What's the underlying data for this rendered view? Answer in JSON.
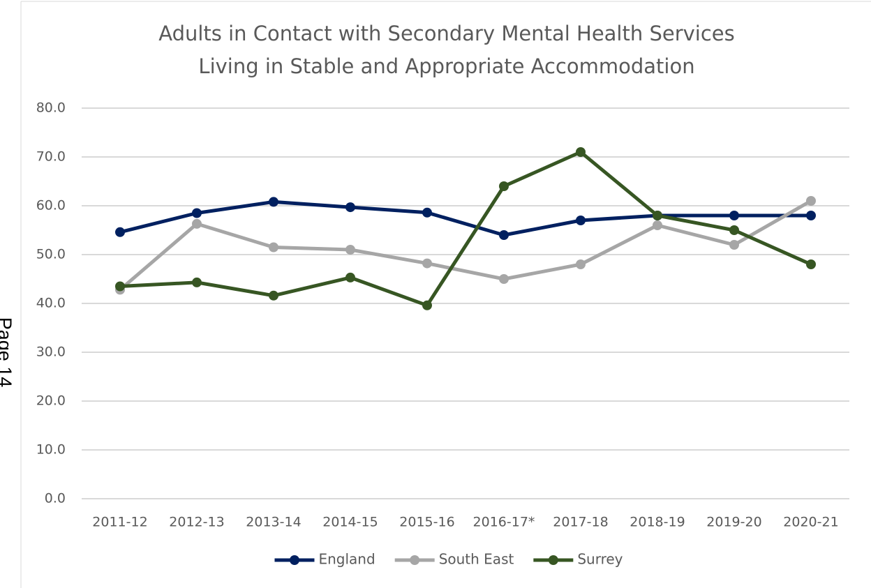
{
  "page_label": "Page 14",
  "chart_data": {
    "type": "line",
    "title": [
      "Adults in Contact with Secondary Mental Health Services",
      "Living in Stable and Appropriate Accommodation"
    ],
    "categories": [
      "2011-12",
      "2012-13",
      "2013-14",
      "2014-15",
      "2015-16",
      "2016-17*",
      "2017-18",
      "2018-19",
      "2019-20",
      "2020-21"
    ],
    "series": [
      {
        "name": "England",
        "color": "#002060",
        "values": [
          54.6,
          58.5,
          60.8,
          59.7,
          58.6,
          54.0,
          57.0,
          58.0,
          58.0,
          58.0
        ]
      },
      {
        "name": "South East",
        "color": "#a6a6a6",
        "values": [
          42.8,
          56.3,
          51.5,
          51.0,
          48.2,
          45.0,
          48.0,
          56.0,
          52.0,
          61.0
        ]
      },
      {
        "name": "Surrey",
        "color": "#375623",
        "values": [
          43.5,
          44.3,
          41.6,
          45.3,
          39.6,
          64.0,
          71.0,
          58.0,
          55.0,
          48.0
        ]
      }
    ],
    "ylim": [
      0,
      80
    ],
    "yticks": [
      {
        "value": 0,
        "label": "0.0"
      },
      {
        "value": 10,
        "label": "10.0"
      },
      {
        "value": 20,
        "label": "20.0"
      },
      {
        "value": 30,
        "label": "30.0"
      },
      {
        "value": 40,
        "label": "40.0"
      },
      {
        "value": 50,
        "label": "50.0"
      },
      {
        "value": 60,
        "label": "60.0"
      },
      {
        "value": 70,
        "label": "70.0"
      },
      {
        "value": 80,
        "label": "80.0"
      }
    ],
    "grid": true,
    "legend": "bottom"
  }
}
